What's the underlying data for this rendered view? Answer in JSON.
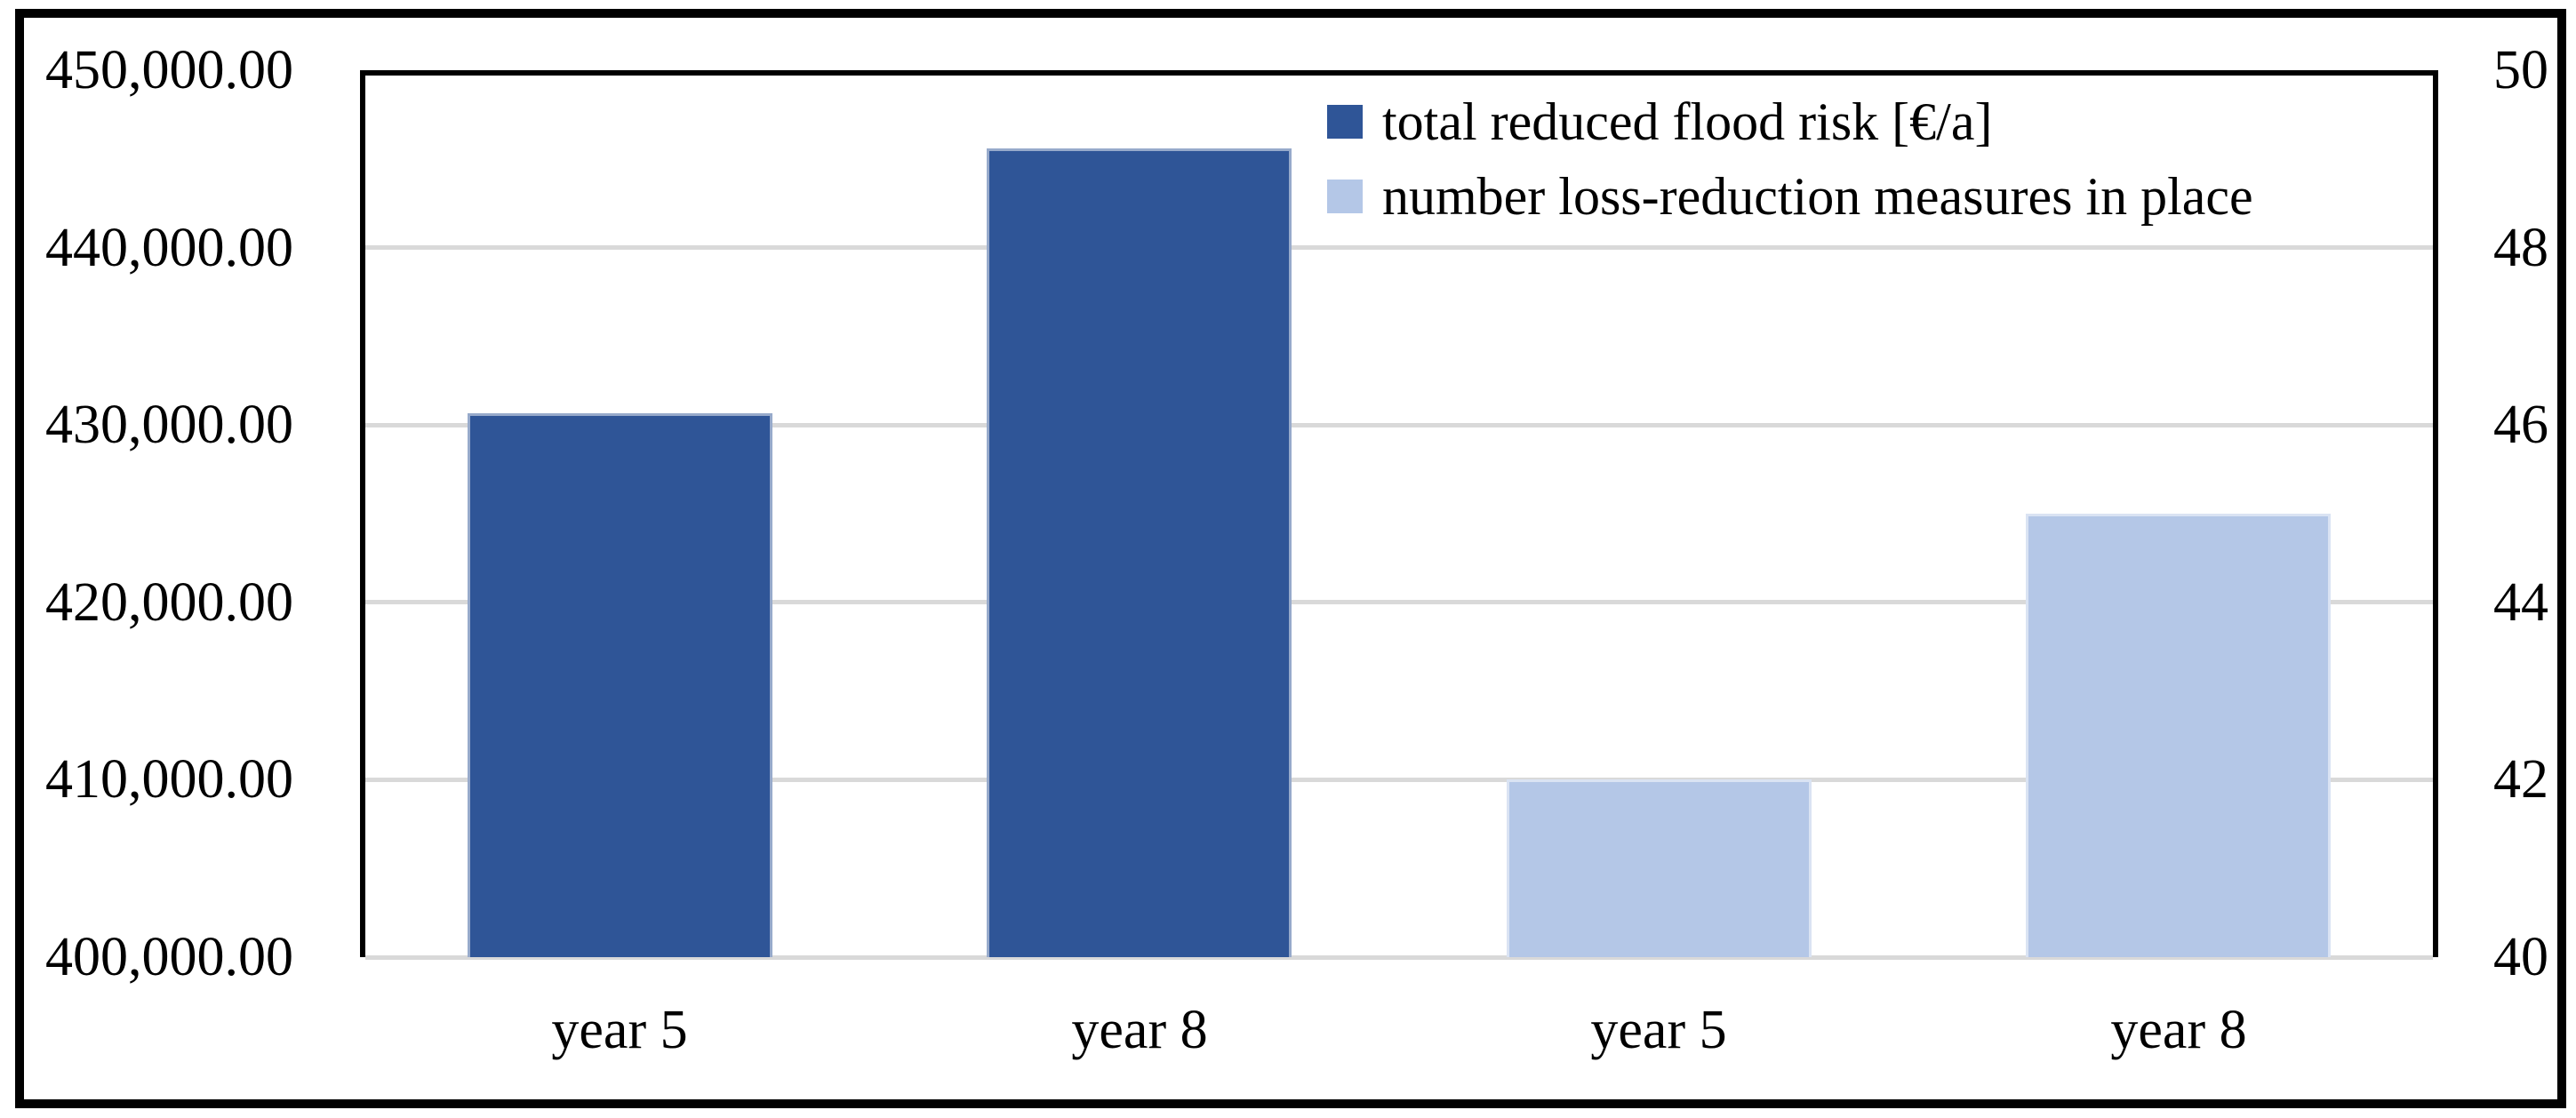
{
  "chart_data": {
    "type": "bar",
    "title": "",
    "dual_axis": true,
    "grid": true,
    "gridline_color": "#D9D9D9",
    "background_color": "#FFFFFF",
    "frame_color": "#000000",
    "categories": [
      "year 5",
      "year 8",
      "year 5",
      "year 8"
    ],
    "series": [
      {
        "name": "total reduced flood risk [€/a]",
        "axis": "left",
        "color": "#2F5597",
        "points": [
          {
            "category_index": 0,
            "category": "year 5",
            "value": 430650
          },
          {
            "category_index": 1,
            "category": "year 8",
            "value": 445600
          }
        ]
      },
      {
        "name": "number loss-reduction measures in place",
        "axis": "right",
        "color": "#B4C7E7",
        "points": [
          {
            "category_index": 2,
            "category": "year 5",
            "value": 42
          },
          {
            "category_index": 3,
            "category": "year 8",
            "value": 45
          }
        ]
      }
    ],
    "left_axis": {
      "min": 400000,
      "max": 450000,
      "tick_interval": 10000,
      "tick_labels": [
        "450,000.00",
        "440,000.00",
        "430,000.00",
        "420,000.00",
        "410,000.00",
        "400,000.00"
      ]
    },
    "right_axis": {
      "min": 40,
      "max": 50,
      "tick_interval": 2,
      "tick_labels": [
        "50",
        "48",
        "46",
        "44",
        "42",
        "40"
      ]
    },
    "legend": {
      "position": "top-right",
      "entries": [
        {
          "label": "total reduced flood risk [€/a]",
          "color": "#2F5597"
        },
        {
          "label": "number loss-reduction measures in place",
          "color": "#B4C7E7"
        }
      ]
    }
  }
}
